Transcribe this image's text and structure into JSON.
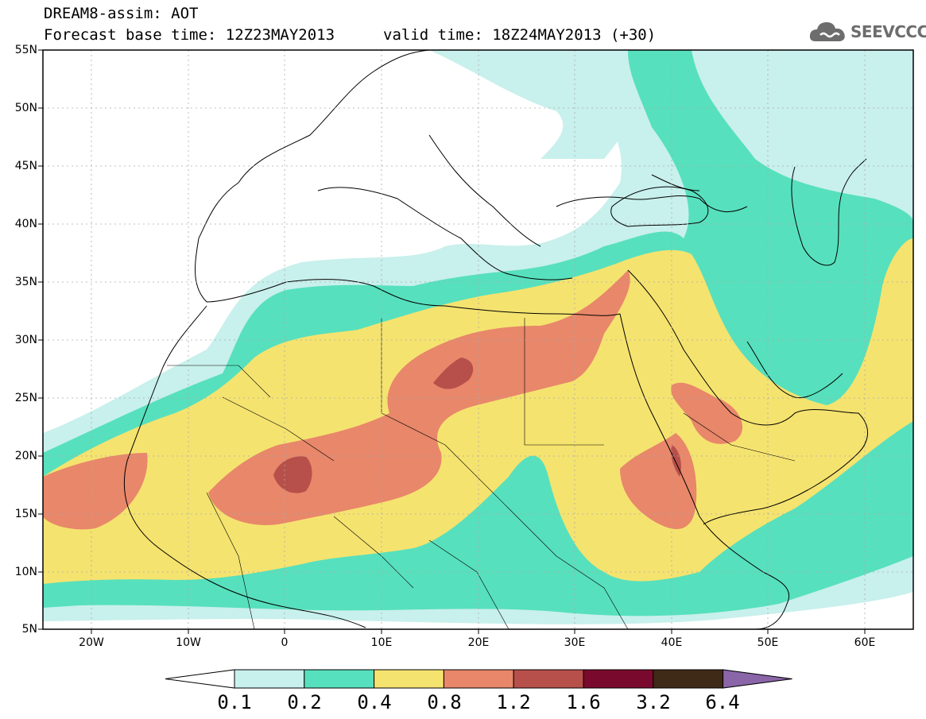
{
  "header": {
    "title": "DREAM8-assim: AOT",
    "base_time": "Forecast base time: 12Z23MAY2013",
    "valid_time": "valid time: 18Z24MAY2013 (+30)"
  },
  "logo": {
    "text": "SEEVCCC",
    "icon": "cloud-icon"
  },
  "map": {
    "lon_range": [
      -25,
      65
    ],
    "lat_range": [
      5,
      55
    ],
    "lat_labels": [
      "55N",
      "50N",
      "45N",
      "40N",
      "35N",
      "30N",
      "25N",
      "20N",
      "15N",
      "10N",
      "5N"
    ],
    "lon_labels": [
      "20W",
      "10W",
      "0",
      "10E",
      "20E",
      "30E",
      "40E",
      "50E",
      "60E"
    ],
    "field": "Aerosol optical thickness (dust)"
  },
  "colorbar": {
    "labels": [
      "0.1",
      "0.2",
      "0.4",
      "0.8",
      "1.2",
      "1.6",
      "3.2",
      "6.4"
    ],
    "colors": [
      "#c8f0ec",
      "#57e0bd",
      "#f5e36f",
      "#e8876a",
      "#b7504a",
      "#7a0a2d",
      "#3e2a17"
    ],
    "below_color": "#ffffff",
    "above_color": "#8a65a8"
  }
}
